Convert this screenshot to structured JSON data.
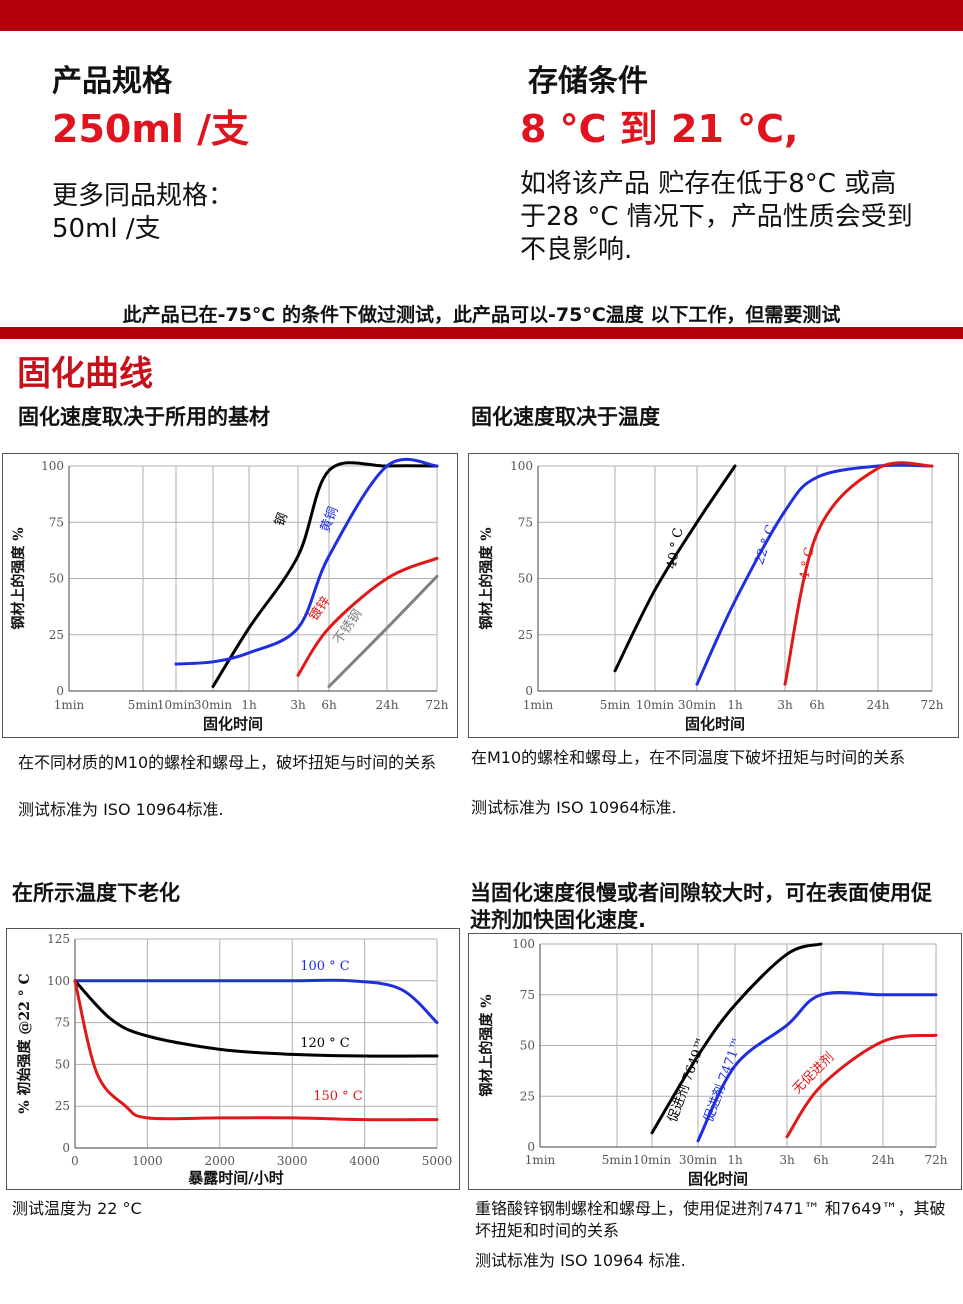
{
  "spec": {
    "heading": "产品规格",
    "value": "250ml /支",
    "more_label": "更多同品规格：",
    "more_value": "50ml /支"
  },
  "storage": {
    "heading": "存储条件",
    "value": "8 °C 到 21 °C,",
    "desc": "如将该产品 贮存在低于8°C 或高于28 °C 情况下，产品性质会受到不良影响."
  },
  "note": "此产品已在-75°C 的条件下做过测试，此产品可以-75°C温度 以下工作，但需要测试",
  "section_title": "固化曲线",
  "charts": [
    {
      "id": "c1",
      "title": "固化速度取决于所用的基材",
      "caption": "在不同材质的M10的螺栓和螺母上，破坏扭矩与时间的关系",
      "standard": "测试标准为 ISO 10964标准.",
      "xlabel": "固化时间",
      "ylabel": "钢材上的强度 %",
      "ticks_x": [
        "1min",
        "5min",
        "10min",
        "30min",
        "1h",
        "3h",
        "6h",
        "24h",
        "72h"
      ],
      "ticks_y": [
        "0",
        "25",
        "50",
        "75",
        "100"
      ],
      "series": [
        {
          "name": "钢",
          "color": "#000000"
        },
        {
          "name": "黄铜",
          "color": "#1f2fe0"
        },
        {
          "name": "镀锌",
          "color": "#e01818"
        },
        {
          "name": "不锈钢",
          "color": "#808080"
        }
      ]
    },
    {
      "id": "c2",
      "title": "固化速度取决于温度",
      "caption": "在M10的螺栓和螺母上，在不同温度下破坏扭矩与时间的关系",
      "standard": "测试标准为 ISO 10964标准.",
      "xlabel": "固化时间",
      "ylabel": "钢材上的强度 %",
      "ticks_x": [
        "1min",
        "5min",
        "10min",
        "30min",
        "1h",
        "3h",
        "6h",
        "24h",
        "72h"
      ],
      "ticks_y": [
        "0",
        "25",
        "50",
        "75",
        "100"
      ],
      "series": [
        {
          "name": "40 ° C",
          "color": "#000000"
        },
        {
          "name": "22 ° C",
          "color": "#1f2fe0"
        },
        {
          "name": "4 ° C",
          "color": "#e01818"
        }
      ]
    },
    {
      "id": "c3",
      "title": "在所示温度下老化",
      "caption": "测试温度为 22 °C",
      "xlabel": "暴露时间/小时",
      "ylabel": "% 初始强度 @22 ° C",
      "ticks_x": [
        "0",
        "1000",
        "2000",
        "3000",
        "4000",
        "5000"
      ],
      "ticks_y": [
        "0",
        "25",
        "50",
        "75",
        "100",
        "125"
      ],
      "series": [
        {
          "name": "100 ° C",
          "color": "#1f2fe0"
        },
        {
          "name": "120 ° C",
          "color": "#000000"
        },
        {
          "name": "150 ° C",
          "color": "#e01818"
        }
      ]
    },
    {
      "id": "c4",
      "title": "当固化速度很慢或者间隙较大时，可在表面使用促进剂加快固化速度.",
      "caption": "重铬酸锌钢制螺栓和螺母上，使用促进剂7471™ 和7649™，其破坏扭矩和时间的关系",
      "standard": "测试标准为 ISO 10964 标准.",
      "xlabel": "固化时间",
      "ylabel": "钢材上的强度 %",
      "ticks_x": [
        "1min",
        "5min",
        "10min",
        "30min",
        "1h",
        "3h",
        "6h",
        "24h",
        "72h"
      ],
      "ticks_y": [
        "0",
        "25",
        "50",
        "75",
        "100"
      ],
      "series": [
        {
          "name": "促进剂 7649™",
          "color": "#000000"
        },
        {
          "name": "促进剂 7471™",
          "color": "#1f2fe0"
        },
        {
          "name": "无促进剂",
          "color": "#e01818"
        }
      ]
    }
  ],
  "chart_data": [
    {
      "type": "line",
      "title": "固化速度取决于所用的基材",
      "xlabel": "固化时间",
      "ylabel": "钢材上的强度 %",
      "categories": [
        "1min",
        "5min",
        "10min",
        "30min",
        "1h",
        "3h",
        "6h",
        "24h",
        "72h"
      ],
      "ylim": [
        0,
        100
      ],
      "grid": true,
      "series": [
        {
          "name": "钢",
          "x": [
            "30min",
            "1h",
            "3h",
            "6h",
            "24h",
            "72h"
          ],
          "y": [
            2,
            28,
            60,
            98,
            100,
            100
          ]
        },
        {
          "name": "黄铜",
          "x": [
            "10min",
            "30min",
            "1h",
            "3h",
            "6h",
            "24h",
            "72h"
          ],
          "y": [
            12,
            13,
            17,
            28,
            60,
            100,
            100
          ]
        },
        {
          "name": "镀锌",
          "x": [
            "3h",
            "6h",
            "24h",
            "72h"
          ],
          "y": [
            7,
            28,
            50,
            59
          ]
        },
        {
          "name": "不锈钢",
          "x": [
            "6h",
            "24h",
            "72h"
          ],
          "y": [
            2,
            28,
            51
          ]
        }
      ]
    },
    {
      "type": "line",
      "title": "固化速度取决于温度",
      "xlabel": "固化时间",
      "ylabel": "钢材上的强度 %",
      "categories": [
        "1min",
        "5min",
        "10min",
        "30min",
        "1h",
        "3h",
        "6h",
        "24h",
        "72h"
      ],
      "ylim": [
        0,
        100
      ],
      "grid": true,
      "series": [
        {
          "name": "40 ° C",
          "x": [
            "5min",
            "10min",
            "30min",
            "1h"
          ],
          "y": [
            9,
            45,
            75,
            100
          ]
        },
        {
          "name": "22 ° C",
          "x": [
            "30min",
            "1h",
            "3h",
            "6h",
            "24h",
            "72h"
          ],
          "y": [
            3,
            40,
            80,
            95,
            100,
            100
          ]
        },
        {
          "name": "4 ° C",
          "x": [
            "3h",
            "6h",
            "24h",
            "72h"
          ],
          "y": [
            3,
            70,
            99,
            100
          ]
        }
      ]
    },
    {
      "type": "line",
      "title": "在所示温度下老化",
      "xlabel": "暴露时间/小时",
      "ylabel": "% 初始强度 @22 ° C",
      "xlim": [
        0,
        5000
      ],
      "ylim": [
        0,
        125
      ],
      "grid": true,
      "series": [
        {
          "name": "100 ° C",
          "x": [
            0,
            1000,
            2000,
            3000,
            3800,
            4500,
            5000
          ],
          "y": [
            100,
            100,
            100,
            100,
            100,
            95,
            75
          ]
        },
        {
          "name": "120 ° C",
          "x": [
            0,
            500,
            1000,
            2000,
            3000,
            4000,
            5000
          ],
          "y": [
            100,
            77,
            67,
            59,
            56,
            55,
            55
          ]
        },
        {
          "name": "150 ° C",
          "x": [
            0,
            300,
            700,
            1000,
            2000,
            3000,
            4000,
            5000
          ],
          "y": [
            100,
            45,
            25,
            18,
            18,
            18,
            17,
            17
          ]
        }
      ]
    },
    {
      "type": "line",
      "title": "当固化速度很慢或者间隙较大时，可在表面使用促进剂加快固化速度.",
      "xlabel": "固化时间",
      "ylabel": "钢材上的强度 %",
      "categories": [
        "1min",
        "5min",
        "10min",
        "30min",
        "1h",
        "3h",
        "6h",
        "24h",
        "72h"
      ],
      "ylim": [
        0,
        100
      ],
      "grid": true,
      "series": [
        {
          "name": "促进剂 7649™",
          "x": [
            "10min",
            "30min",
            "1h",
            "3h",
            "6h"
          ],
          "y": [
            7,
            45,
            70,
            95,
            100
          ]
        },
        {
          "name": "促进剂 7471™",
          "x": [
            "30min",
            "1h",
            "3h",
            "6h",
            "24h",
            "72h"
          ],
          "y": [
            3,
            40,
            60,
            75,
            75,
            75
          ]
        },
        {
          "name": "无促进剂",
          "x": [
            "3h",
            "6h",
            "24h",
            "72h"
          ],
          "y": [
            5,
            30,
            52,
            55
          ]
        }
      ]
    }
  ]
}
